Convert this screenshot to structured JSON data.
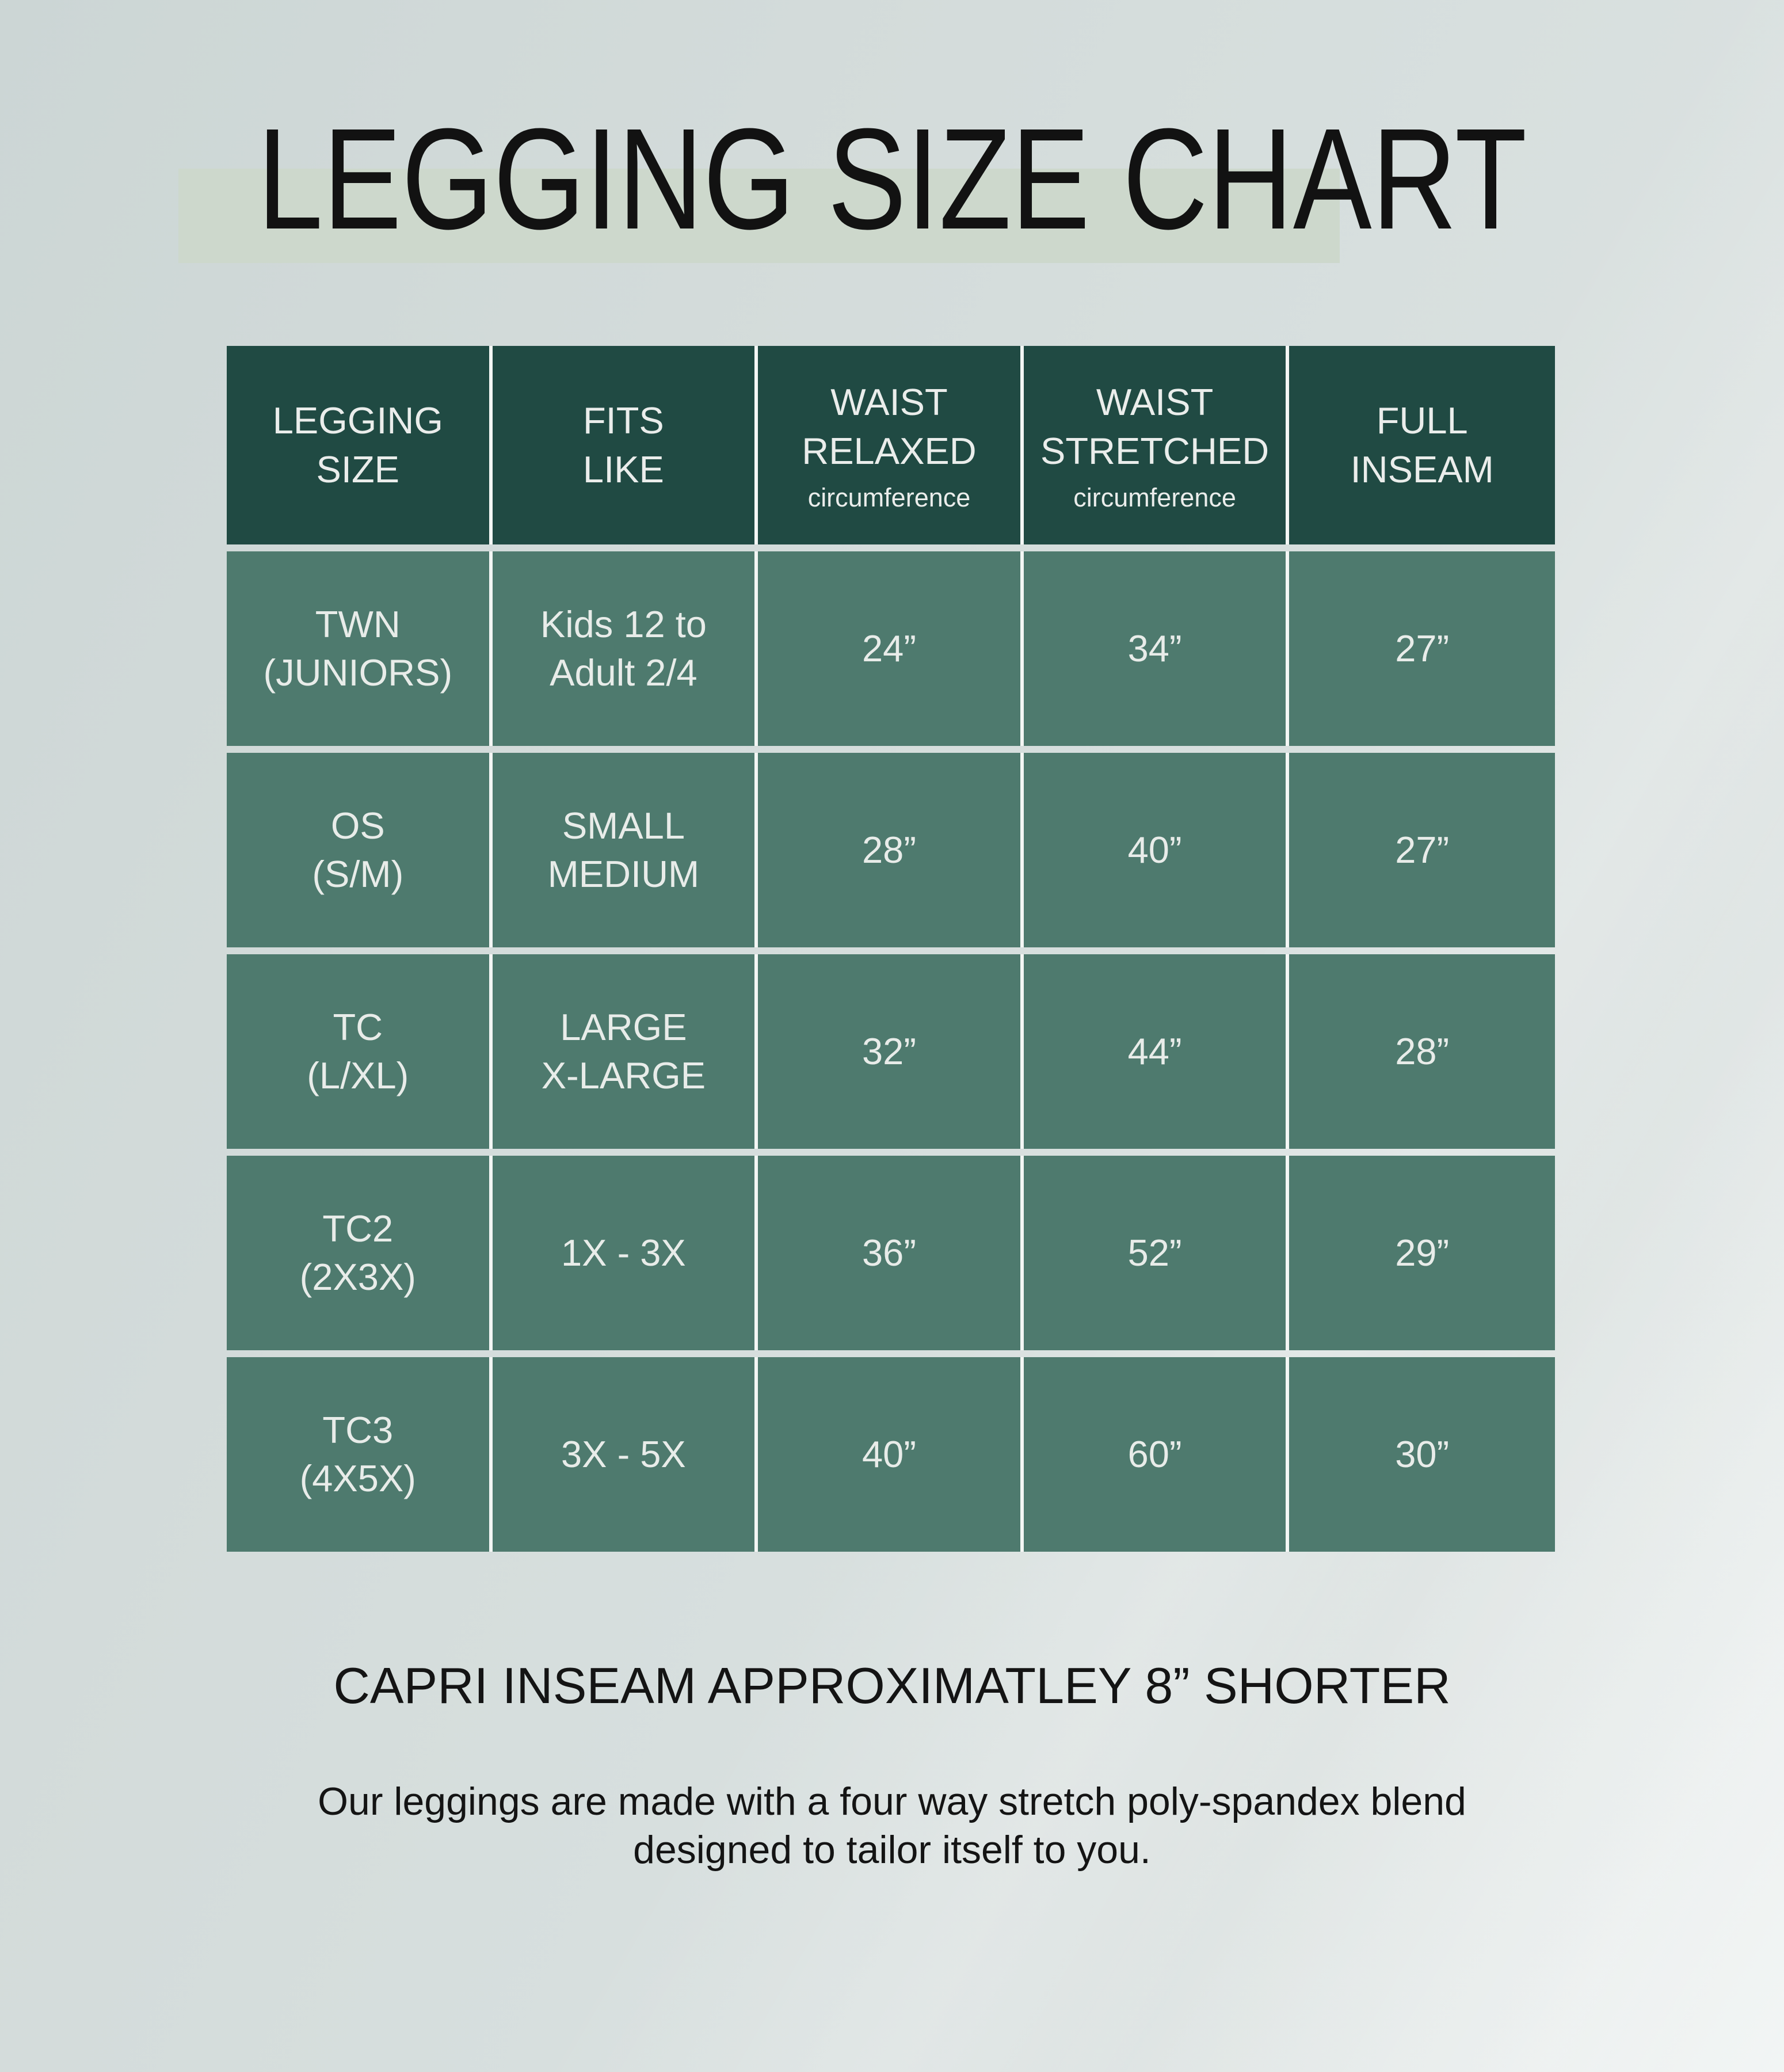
{
  "title": "LEGGING SIZE CHART",
  "capri_note": "CAPRI INSEAM APPROXIMATLEY 8” SHORTER",
  "description": {
    "line1": "Our leggings are made with a four way stretch poly-spandex blend",
    "line2": "designed to tailor itself to you."
  },
  "colors": {
    "background": "#d6dedd",
    "title_text": "#121212",
    "title_highlight": "#cdd8cc",
    "header_bg": "#204a43",
    "cell_bg": "#4e7a6e",
    "cell_text": "#e8ece9",
    "divider": "#f3f6f4"
  },
  "table": {
    "columns": [
      {
        "line1": "LEGGING",
        "line2": "SIZE",
        "sub": ""
      },
      {
        "line1": "FITS",
        "line2": "LIKE",
        "sub": ""
      },
      {
        "line1": "WAIST",
        "line2": "RELAXED",
        "sub": "circumference"
      },
      {
        "line1": "WAIST",
        "line2": "STRETCHED",
        "sub": "circumference"
      },
      {
        "line1": "FULL",
        "line2": "INSEAM",
        "sub": ""
      }
    ],
    "rows": [
      {
        "size1": "TWN",
        "size2": "(JUNIORS)",
        "fits1": "Kids 12 to",
        "fits2": "Adult 2/4",
        "waist_relaxed": "24”",
        "waist_stretched": "34”",
        "full_inseam": "27”"
      },
      {
        "size1": "OS",
        "size2": "(S/M)",
        "fits1": "SMALL",
        "fits2": "MEDIUM",
        "waist_relaxed": "28”",
        "waist_stretched": "40”",
        "full_inseam": "27”"
      },
      {
        "size1": "TC",
        "size2": "(L/XL)",
        "fits1": "LARGE",
        "fits2": "X-LARGE",
        "waist_relaxed": "32”",
        "waist_stretched": "44”",
        "full_inseam": "28”"
      },
      {
        "size1": "TC2",
        "size2": "(2X3X)",
        "fits1": "1X - 3X",
        "fits2": "",
        "waist_relaxed": "36”",
        "waist_stretched": "52”",
        "full_inseam": "29”"
      },
      {
        "size1": "TC3",
        "size2": "(4X5X)",
        "fits1": "3X - 5X",
        "fits2": "",
        "waist_relaxed": "40”",
        "waist_stretched": "60”",
        "full_inseam": "30”"
      }
    ]
  }
}
